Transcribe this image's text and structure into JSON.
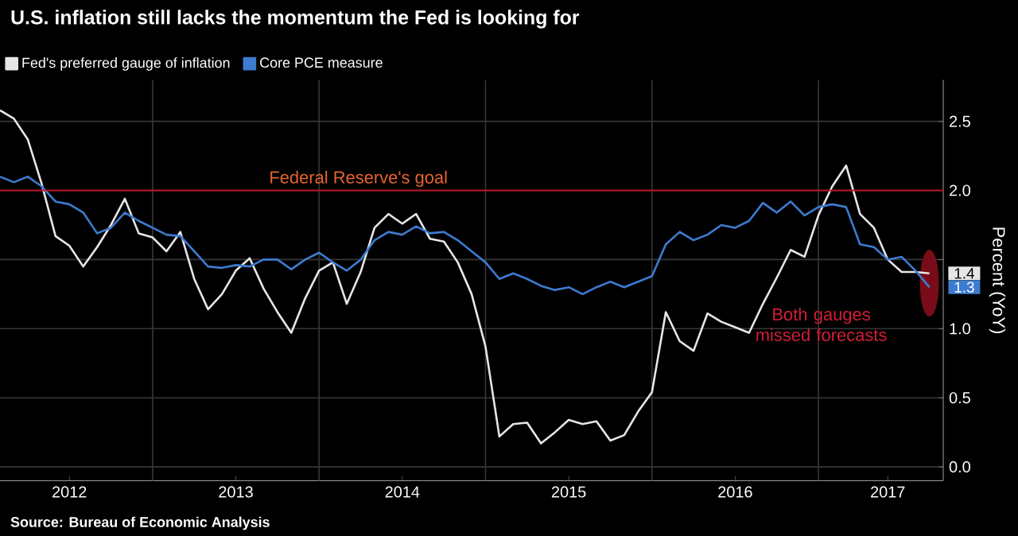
{
  "chart_data": {
    "type": "line",
    "title": "U.S. inflation still lacks the momentum the Fed is looking for",
    "ylabel": "Percent (YoY)",
    "x": [
      "2012-02",
      "2012-03",
      "2012-04",
      "2012-05",
      "2012-06",
      "2012-07",
      "2012-08",
      "2012-09",
      "2012-10",
      "2012-11",
      "2012-12",
      "2013-01",
      "2013-02",
      "2013-03",
      "2013-04",
      "2013-05",
      "2013-06",
      "2013-07",
      "2013-08",
      "2013-09",
      "2013-10",
      "2013-11",
      "2013-12",
      "2014-01",
      "2014-02",
      "2014-03",
      "2014-04",
      "2014-05",
      "2014-06",
      "2014-07",
      "2014-08",
      "2014-09",
      "2014-10",
      "2014-11",
      "2014-12",
      "2015-01",
      "2015-02",
      "2015-03",
      "2015-04",
      "2015-05",
      "2015-06",
      "2015-07",
      "2015-08",
      "2015-09",
      "2015-10",
      "2015-11",
      "2015-12",
      "2016-01",
      "2016-02",
      "2016-03",
      "2016-04",
      "2016-05",
      "2016-06",
      "2016-07",
      "2016-08",
      "2016-09",
      "2016-10",
      "2016-11",
      "2016-12",
      "2017-01",
      "2017-02",
      "2017-03",
      "2017-04",
      "2017-05",
      "2017-06",
      "2017-07",
      "2017-08",
      "2017-09"
    ],
    "series": [
      {
        "name": "Fed's preferred gauge of inflation",
        "color": "#e6e6e6",
        "values": [
          2.58,
          2.52,
          2.37,
          2.05,
          1.67,
          1.6,
          1.45,
          1.59,
          1.75,
          1.94,
          1.69,
          1.66,
          1.56,
          1.7,
          1.36,
          1.14,
          1.25,
          1.42,
          1.51,
          1.29,
          1.12,
          0.97,
          1.22,
          1.42,
          1.48,
          1.18,
          1.41,
          1.73,
          1.83,
          1.76,
          1.83,
          1.65,
          1.63,
          1.48,
          1.25,
          0.87,
          0.22,
          0.31,
          0.32,
          0.17,
          0.25,
          0.34,
          0.31,
          0.33,
          0.19,
          0.23,
          0.4,
          0.54,
          1.12,
          0.91,
          0.84,
          1.11,
          1.05,
          1.01,
          0.97,
          1.18,
          1.37,
          1.57,
          1.52,
          1.82,
          2.03,
          2.18,
          1.83,
          1.73,
          1.5,
          1.41,
          1.41,
          1.4
        ],
        "value_labels": [
          null,
          null,
          null,
          null,
          null,
          null,
          null,
          null,
          null,
          null,
          null,
          null,
          null,
          null,
          null,
          null,
          null,
          null,
          null,
          null,
          null,
          null,
          null,
          null,
          null,
          null,
          null,
          null,
          null,
          null,
          null,
          null,
          null,
          null,
          null,
          null,
          null,
          null,
          null,
          null,
          null,
          null,
          null,
          null,
          null,
          null,
          null,
          null,
          null,
          null,
          null,
          null,
          null,
          null,
          null,
          null,
          null,
          null,
          null,
          null,
          null,
          null,
          null,
          null,
          null,
          null,
          null,
          "1.4"
        ]
      },
      {
        "name": "Core PCE measure",
        "color": "#3d7bd0",
        "values": [
          2.1,
          2.06,
          2.1,
          2.03,
          1.92,
          1.9,
          1.84,
          1.69,
          1.73,
          1.84,
          1.78,
          1.73,
          1.68,
          1.67,
          1.56,
          1.45,
          1.44,
          1.46,
          1.45,
          1.5,
          1.5,
          1.43,
          1.5,
          1.55,
          1.48,
          1.42,
          1.5,
          1.64,
          1.7,
          1.68,
          1.74,
          1.69,
          1.7,
          1.64,
          1.56,
          1.48,
          1.36,
          1.4,
          1.36,
          1.31,
          1.28,
          1.3,
          1.25,
          1.3,
          1.34,
          1.3,
          1.34,
          1.38,
          1.61,
          1.7,
          1.64,
          1.68,
          1.75,
          1.73,
          1.78,
          1.91,
          1.84,
          1.92,
          1.82,
          1.88,
          1.9,
          1.88,
          1.61,
          1.59,
          1.5,
          1.52,
          1.42,
          1.3
        ],
        "value_labels": [
          null,
          null,
          null,
          null,
          null,
          null,
          null,
          null,
          null,
          null,
          null,
          null,
          null,
          null,
          null,
          null,
          null,
          null,
          null,
          null,
          null,
          null,
          null,
          null,
          null,
          null,
          null,
          null,
          null,
          null,
          null,
          null,
          null,
          null,
          null,
          null,
          null,
          null,
          null,
          null,
          null,
          null,
          null,
          null,
          null,
          null,
          null,
          null,
          null,
          null,
          null,
          null,
          null,
          null,
          null,
          null,
          null,
          null,
          null,
          null,
          null,
          null,
          null,
          null,
          null,
          null,
          null,
          "1.3"
        ]
      }
    ],
    "xlim": [
      "2012-02",
      "2017-10"
    ],
    "xticks": [
      {
        "value": "2012-07",
        "label": "2012"
      },
      {
        "value": "2013-07",
        "label": "2013"
      },
      {
        "value": "2014-07",
        "label": "2014"
      },
      {
        "value": "2015-07",
        "label": "2015"
      },
      {
        "value": "2016-07",
        "label": "2016"
      },
      {
        "value": "2017-06",
        "label": "2017"
      },
      {
        "value": "2013-01",
        "label": null
      },
      {
        "value": "2014-01",
        "label": null
      },
      {
        "value": "2015-01",
        "label": null
      },
      {
        "value": "2016-01",
        "label": null
      },
      {
        "value": "2017-01",
        "label": null
      }
    ],
    "ylim": [
      -0.1,
      2.8
    ],
    "yticks": [
      {
        "value": 0,
        "label": "0.0"
      },
      {
        "value": 0.5,
        "label": "0.5"
      },
      {
        "value": 1,
        "label": "1.0"
      },
      {
        "value": 1.5,
        "label": null
      },
      {
        "value": 2,
        "label": "2.0"
      },
      {
        "value": 2.5,
        "label": "2.5"
      }
    ],
    "ref_lines": [
      {
        "axis": "y",
        "value": 2.0,
        "label": "Federal Reserve's goal",
        "color": "#b5152b"
      }
    ],
    "annotations": [
      "Source: Bureau of Economic Analysis",
      {
        "text": "Both gauges missed forecasts",
        "x": "2017-09",
        "y": 1.33
      }
    ],
    "grid": true,
    "legend": "top left",
    "line_style": "solid",
    "marker": "none"
  }
}
